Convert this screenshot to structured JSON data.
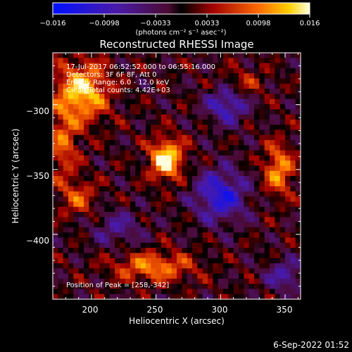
{
  "colorbar": {
    "ticks": [
      "−0.016",
      "−0.0098",
      "−0.0033",
      "0.0033",
      "0.0098",
      "0.016"
    ],
    "unit_label": "(photons cm⁻² s⁻¹ asec⁻²)",
    "range": [
      -0.016,
      0.016
    ]
  },
  "chart_data": {
    "type": "heatmap",
    "title": "Reconstructed RHESSI Image",
    "xlabel": "Heliocentric X (arcsec)",
    "ylabel": "Heliocentric Y (arcsec)",
    "xlim": [
      170,
      362
    ],
    "ylim": [
      -450,
      -260
    ],
    "x_ticks": [
      200,
      250,
      300,
      350
    ],
    "y_ticks": [
      -300,
      -350,
      -400
    ],
    "annotations": [
      "17-Jul-2017 06:52:52.000 to 06:55:16.000",
      "Detectors: 3F 6F 8F, Att 0",
      "Energy Range: 6.0 - 12.0 keV",
      "Clean  Total counts: 4.42E+03"
    ],
    "peak_label": "Position of Peak = [258,-342]",
    "sources": [
      {
        "x": 258,
        "y": -342,
        "sx": 9,
        "sy": 11,
        "amp": 0.016
      },
      {
        "x": 193,
        "y": -290,
        "sx": 14,
        "sy": 16,
        "amp": 0.014
      },
      {
        "x": 178,
        "y": -330,
        "sx": 8,
        "sy": 20,
        "amp": 0.008
      },
      {
        "x": 345,
        "y": -350,
        "sx": 8,
        "sy": 14,
        "amp": 0.011
      },
      {
        "x": 190,
        "y": -372,
        "sx": 10,
        "sy": 10,
        "amp": 0.007
      },
      {
        "x": 248,
        "y": -425,
        "sx": 22,
        "sy": 8,
        "amp": 0.01
      },
      {
        "x": 318,
        "y": -283,
        "sx": 12,
        "sy": 8,
        "amp": 0.005
      },
      {
        "x": 300,
        "y": -370,
        "sx": 14,
        "sy": 14,
        "amp": -0.012
      },
      {
        "x": 305,
        "y": -300,
        "sx": 11,
        "sy": 10,
        "amp": -0.01
      },
      {
        "x": 350,
        "y": -432,
        "sx": 10,
        "sy": 8,
        "amp": -0.008
      },
      {
        "x": 220,
        "y": -395,
        "sx": 14,
        "sy": 10,
        "amp": -0.006
      }
    ]
  },
  "footer": {
    "timestamp": "6-Sep-2022 01:52"
  }
}
